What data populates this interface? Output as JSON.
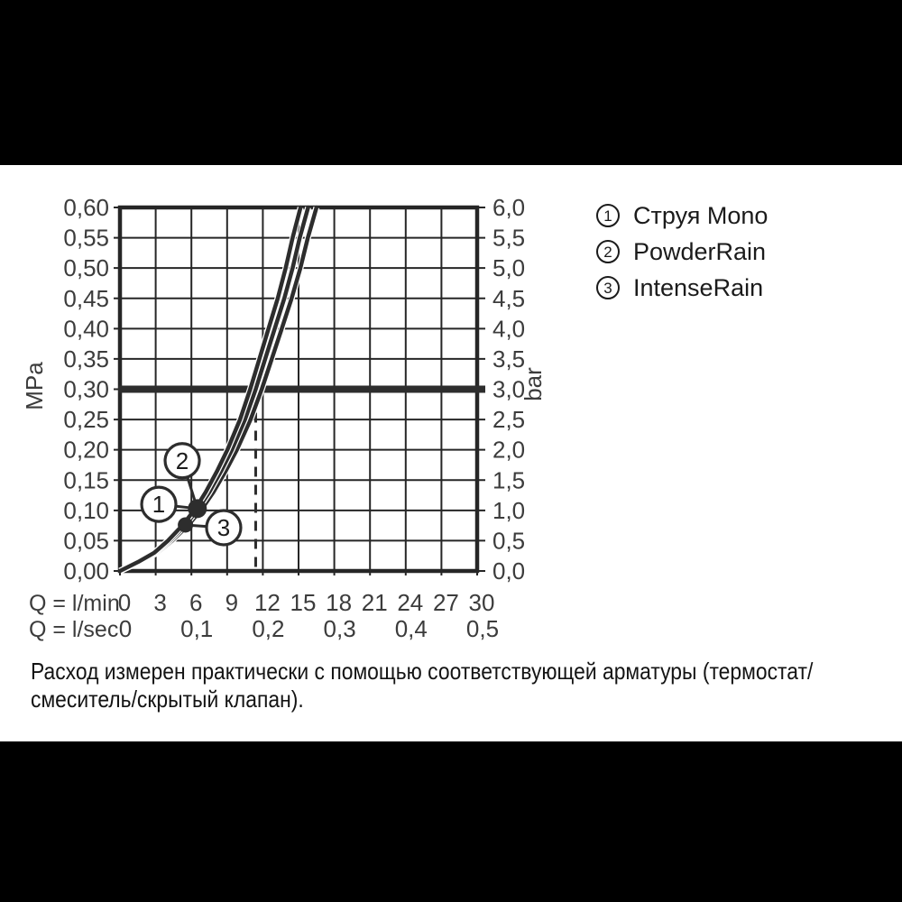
{
  "colors": {
    "ink": "#2d2d2d",
    "grid": "#262626",
    "axis_text": "#3c3c3c",
    "legend_text": "#1b1b1b",
    "background": "#ffffff",
    "letterbox": "#000000"
  },
  "legend": {
    "items": [
      {
        "num": "1",
        "label": "Струя Mono"
      },
      {
        "num": "2",
        "label": "PowderRain"
      },
      {
        "num": "3",
        "label": "IntenseRain"
      }
    ]
  },
  "footnote": {
    "line1": "Расход измерен практически с помощью соответствующей арматуры (термостат/",
    "line2": "смеситель/скрытый клапан)."
  },
  "chart_data": {
    "type": "line",
    "title": "",
    "grid": true,
    "x_axis": {
      "row1_label": "Q = l/min",
      "row2_label": "Q = l/sec",
      "row1_ticks": [
        "0",
        "3",
        "6",
        "9",
        "12",
        "15",
        "18",
        "21",
        "24",
        "27",
        "30"
      ],
      "row1_values_lmin": [
        0,
        3,
        6,
        9,
        12,
        15,
        18,
        21,
        24,
        27,
        30
      ],
      "row2_ticks": [
        {
          "text": "0",
          "lmin": 0
        },
        {
          "text": "0,1",
          "lmin": 6
        },
        {
          "text": "0,2",
          "lmin": 12
        },
        {
          "text": "0,3",
          "lmin": 18
        },
        {
          "text": "0,4",
          "lmin": 24
        },
        {
          "text": "0,5",
          "lmin": 30
        }
      ],
      "range_lmin": [
        0,
        30
      ],
      "grid_step_lmin": 3
    },
    "y_axis_left": {
      "unit": "MPa",
      "ticks": [
        "0,60",
        "0,55",
        "0,50",
        "0,45",
        "0,40",
        "0,35",
        "0,30",
        "0,25",
        "0,20",
        "0,15",
        "0,10",
        "0,05",
        "0,00"
      ],
      "range_mpa": [
        0,
        0.6
      ],
      "grid_step_mpa": 0.05
    },
    "y_axis_right": {
      "unit": "bar",
      "ticks": [
        "6,0",
        "5,5",
        "5,0",
        "4,5",
        "4,0",
        "3,5",
        "3,0",
        "2,5",
        "2,0",
        "1,5",
        "1,0",
        "0,5",
        "0,0"
      ]
    },
    "reference_line": {
      "mpa": 0.3,
      "bar": 3.0
    },
    "dashed_line_lmin": 11.4,
    "series": [
      {
        "id": "3",
        "name": "IntenseRain",
        "points": [
          [
            0,
            0
          ],
          [
            1.67,
            0.015
          ],
          [
            3.14,
            0.03
          ],
          [
            4.39,
            0.05
          ],
          [
            5.75,
            0.076
          ],
          [
            6.9,
            0.103
          ],
          [
            7.84,
            0.13
          ],
          [
            8.88,
            0.165
          ],
          [
            9.82,
            0.2
          ],
          [
            10.97,
            0.25
          ],
          [
            11.91,
            0.3
          ],
          [
            12.75,
            0.35
          ],
          [
            13.59,
            0.4
          ],
          [
            14.42,
            0.45
          ],
          [
            15.15,
            0.5
          ],
          [
            15.78,
            0.55
          ],
          [
            16.51,
            0.6
          ]
        ]
      },
      {
        "id": "2",
        "name": "PowderRain",
        "points": [
          [
            0,
            0
          ],
          [
            1.6,
            0.015
          ],
          [
            3.0,
            0.03
          ],
          [
            4.2,
            0.05
          ],
          [
            5.5,
            0.076
          ],
          [
            6.6,
            0.103
          ],
          [
            7.5,
            0.13
          ],
          [
            8.5,
            0.165
          ],
          [
            9.4,
            0.2
          ],
          [
            10.5,
            0.25
          ],
          [
            11.4,
            0.3
          ],
          [
            12.2,
            0.35
          ],
          [
            13.0,
            0.4
          ],
          [
            13.8,
            0.45
          ],
          [
            14.5,
            0.5
          ],
          [
            15.1,
            0.55
          ],
          [
            15.8,
            0.6
          ]
        ]
      },
      {
        "id": "1",
        "name": "Струя Mono",
        "points": [
          [
            0,
            0
          ],
          [
            1.54,
            0.015
          ],
          [
            2.88,
            0.03
          ],
          [
            4.03,
            0.05
          ],
          [
            5.28,
            0.076
          ],
          [
            6.34,
            0.103
          ],
          [
            7.2,
            0.13
          ],
          [
            8.16,
            0.165
          ],
          [
            9.02,
            0.2
          ],
          [
            10.08,
            0.25
          ],
          [
            10.94,
            0.3
          ],
          [
            11.71,
            0.35
          ],
          [
            12.48,
            0.4
          ],
          [
            13.25,
            0.45
          ],
          [
            13.92,
            0.5
          ],
          [
            14.5,
            0.55
          ],
          [
            15.17,
            0.6
          ]
        ]
      }
    ],
    "markers": [
      {
        "on": "series_1_2",
        "lmin": 6.5,
        "mpa": 0.103,
        "r": 10.5
      },
      {
        "on": "series_3",
        "lmin": 5.5,
        "mpa": 0.076,
        "r": 8.5
      }
    ],
    "callouts": [
      {
        "num": "1",
        "lmin": 3.26,
        "mpa": 0.11,
        "marker": 0
      },
      {
        "num": "2",
        "lmin": 5.23,
        "mpa": 0.182,
        "marker": 0
      },
      {
        "num": "3",
        "lmin": 8.71,
        "mpa": 0.0715,
        "marker": 1
      }
    ]
  }
}
